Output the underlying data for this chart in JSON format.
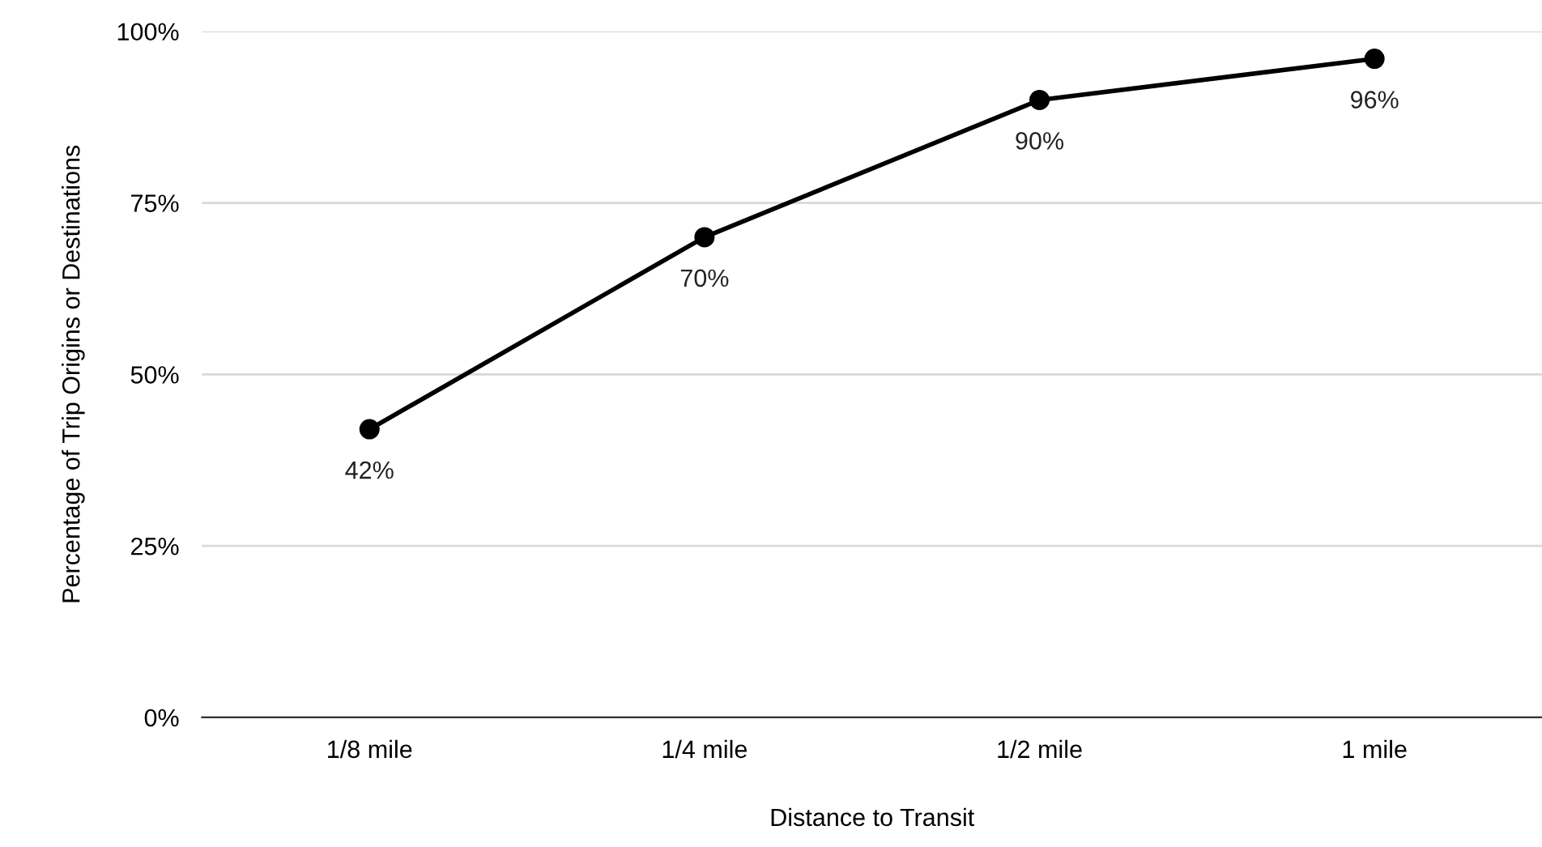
{
  "chart_data": {
    "type": "line",
    "xlabel": "Distance to Transit",
    "ylabel": "Percentage of Trip Origins or Destinations",
    "categories": [
      "1/8 mile",
      "1/4 mile",
      "1/2 mile",
      "1 mile"
    ],
    "series": [
      {
        "color": "#000000",
        "values": [
          42,
          70,
          90,
          96
        ],
        "value_labels": [
          "42%",
          "70%",
          "90%",
          "96%"
        ]
      }
    ],
    "ylim": [
      0,
      100
    ],
    "yticks": [
      {
        "value": 0,
        "label": "0%"
      },
      {
        "value": 25,
        "label": "25%"
      },
      {
        "value": 50,
        "label": "50%"
      },
      {
        "value": 75,
        "label": "75%"
      },
      {
        "value": 100,
        "label": "100%"
      }
    ],
    "grid": "y",
    "marker": "circle",
    "line_style": "solid",
    "legend": false
  }
}
